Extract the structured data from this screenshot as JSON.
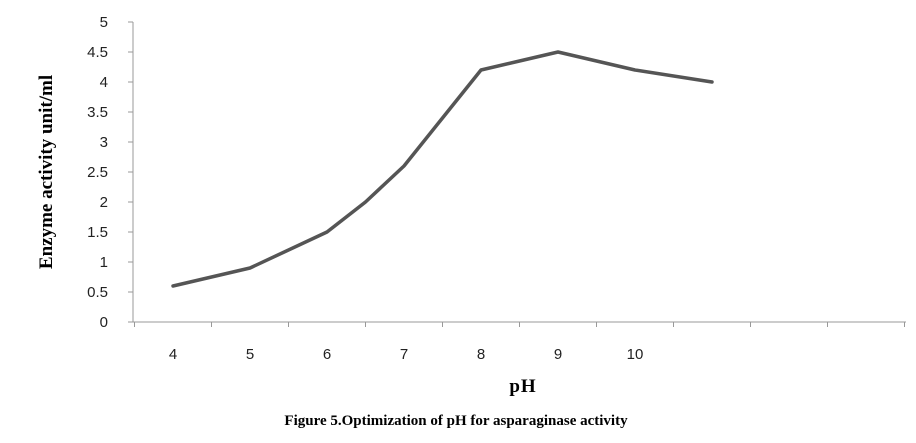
{
  "chart_data": {
    "type": "line",
    "title": "",
    "caption": "Figure 5.Optimization of pH for asparaginase activity",
    "xlabel": "pH",
    "ylabel": "Enzyme activity unit/ml",
    "categories": [
      "4",
      "5",
      "6",
      "7",
      "8",
      "9",
      "10",
      "",
      "",
      "",
      ""
    ],
    "ylim": [
      0,
      5
    ],
    "yticks": [
      "0",
      "0.5",
      "1",
      "1.5",
      "2",
      "2.5",
      "3",
      "3.5",
      "4",
      "4.5",
      "5"
    ],
    "grid": false,
    "series": [
      {
        "name": "Enzyme activity",
        "color": "#555555",
        "points": [
          {
            "x": 4.0,
            "y": 0.6
          },
          {
            "x": 5.0,
            "y": 0.9
          },
          {
            "x": 6.0,
            "y": 1.5
          },
          {
            "x": 6.5,
            "y": 2.0
          },
          {
            "x": 7.0,
            "y": 2.6
          },
          {
            "x": 7.5,
            "y": 3.4
          },
          {
            "x": 8.0,
            "y": 4.2
          },
          {
            "x": 8.5,
            "y": 4.35
          },
          {
            "x": 9.0,
            "y": 4.5
          },
          {
            "x": 10.0,
            "y": 4.2
          },
          {
            "x": 11.0,
            "y": 4.0
          }
        ]
      }
    ]
  }
}
